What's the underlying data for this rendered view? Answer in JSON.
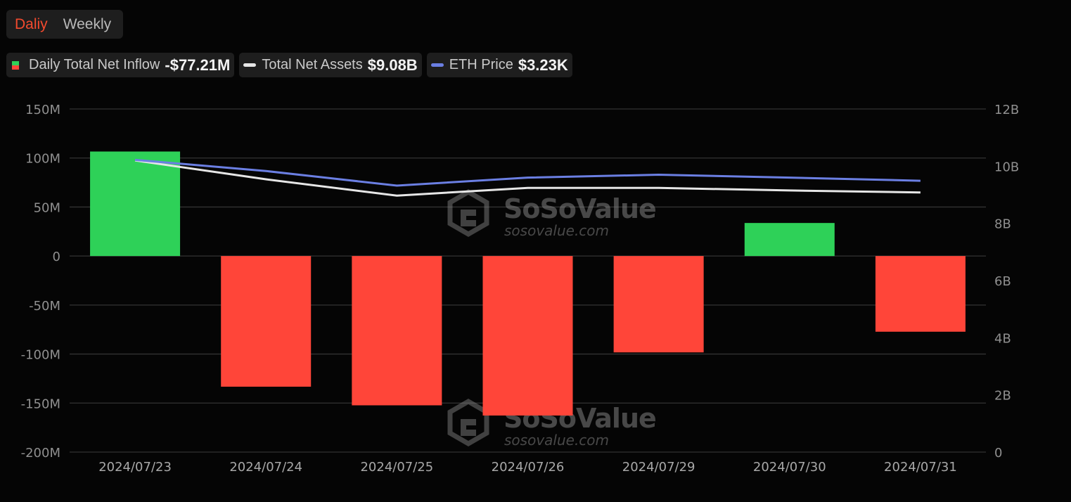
{
  "tabs": {
    "daily": "Daliy",
    "weekly": "Weekly"
  },
  "legend": {
    "inflow_label": "Daily Total Net Inflow",
    "inflow_value": "-$77.21M",
    "assets_label": "Total Net Assets",
    "assets_value": "$9.08B",
    "price_label": "ETH Price",
    "price_value": "$3.23K"
  },
  "watermark": {
    "brand": "SoSoValue",
    "url": "sosovalue.com"
  },
  "colors": {
    "positive": "#2ed158",
    "negative": "#ff4539",
    "assets_line": "#e6e6e6",
    "price_line": "#6b7fe3",
    "active_tab": "#f34a2e"
  },
  "chart_data": {
    "type": "bar",
    "categories": [
      "2024/07/23",
      "2024/07/24",
      "2024/07/25",
      "2024/07/26",
      "2024/07/29",
      "2024/07/30",
      "2024/07/31"
    ],
    "series": [
      {
        "name": "Daily Total Net Inflow",
        "type": "bar",
        "axis": "left",
        "values": [
          106.6,
          -133.3,
          -152.3,
          -162.7,
          -98.3,
          33.7,
          -77.21
        ]
      },
      {
        "name": "Total Net Assets",
        "type": "line",
        "axis": "right",
        "values": [
          10.2,
          9.54,
          8.97,
          9.24,
          9.24,
          9.15,
          9.08
        ]
      },
      {
        "name": "ETH Price",
        "type": "line",
        "axis": "right",
        "values": [
          10.22,
          9.83,
          9.32,
          9.6,
          9.7,
          9.6,
          9.49
        ]
      }
    ],
    "y_left": {
      "ticks": [
        "150M",
        "100M",
        "50M",
        "0",
        "-50M",
        "-100M",
        "-150M",
        "-200M"
      ],
      "range": [
        -200,
        150
      ]
    },
    "y_right": {
      "ticks": [
        "12B",
        "10B",
        "8B",
        "6B",
        "4B",
        "2B",
        "0"
      ],
      "range": [
        0,
        12
      ]
    },
    "grid": true
  }
}
